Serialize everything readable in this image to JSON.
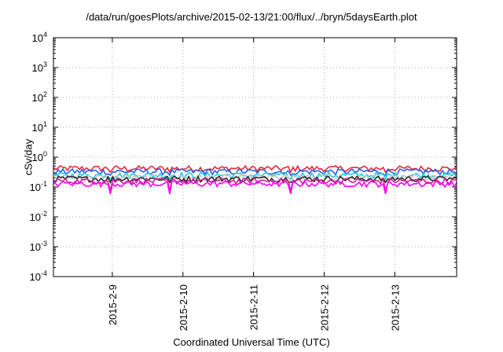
{
  "chart_data": {
    "type": "line",
    "title": "/data/run/goesPlots/archive/2015-02-13/21:00/flux/../bryn/5daysEarth.plot",
    "xlabel": "Coordinated Universal Time (UTC)",
    "ylabel": "cSv/day",
    "yscale": "log",
    "ylim": [
      0.0001,
      10000
    ],
    "y_ticks": [
      {
        "base": "10",
        "exp": "-4"
      },
      {
        "base": "10",
        "exp": "-3"
      },
      {
        "base": "10",
        "exp": "-2"
      },
      {
        "base": "10",
        "exp": "-1"
      },
      {
        "base": "10",
        "exp": "0"
      },
      {
        "base": "10",
        "exp": "1"
      },
      {
        "base": "10",
        "exp": "2"
      },
      {
        "base": "10",
        "exp": "3"
      },
      {
        "base": "10",
        "exp": "4"
      }
    ],
    "xlim": [
      "2015-02-08 04:00",
      "2015-02-13 21:00"
    ],
    "x_ticks": [
      "2015-2-9",
      "2015-2-10",
      "2015-2-11",
      "2015-2-12",
      "2015-2-13"
    ],
    "grid": true,
    "series": [
      {
        "color": "#e8283a",
        "level": 0.42
      },
      {
        "color": "#2860ee",
        "level": 0.33
      },
      {
        "color": "#20c8d8",
        "level": 0.25
      },
      {
        "color": "#c8c8c8",
        "level": 0.21
      },
      {
        "color": "#282828",
        "level": 0.19
      },
      {
        "color": "#d02090",
        "level": 0.16
      },
      {
        "color": "#ff00ff",
        "level": 0.13
      }
    ]
  }
}
